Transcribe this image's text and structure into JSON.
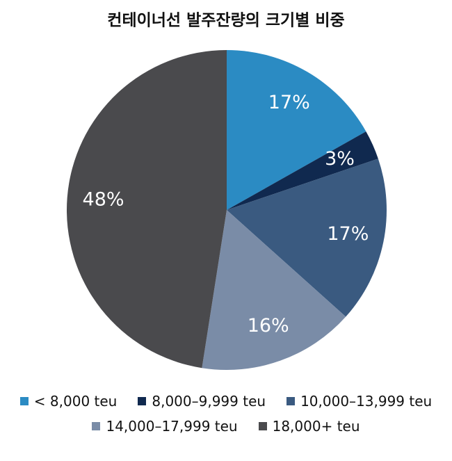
{
  "chart_data": {
    "type": "pie",
    "title": "컨테이너선 발주잔량의 크기별 비중",
    "categories": [
      "< 8,000 teu",
      "8,000–9,999 teu",
      "10,000–13,999 teu",
      "14,000–17,999 teu",
      "18,000+ teu"
    ],
    "values": [
      17,
      3,
      17,
      16,
      48
    ],
    "value_labels": [
      "17%",
      "3%",
      "17%",
      "16%",
      "48%"
    ],
    "colors": [
      "#2b8bc3",
      "#10294f",
      "#3a5a80",
      "#7a8ca7",
      "#4a4a4d"
    ]
  }
}
